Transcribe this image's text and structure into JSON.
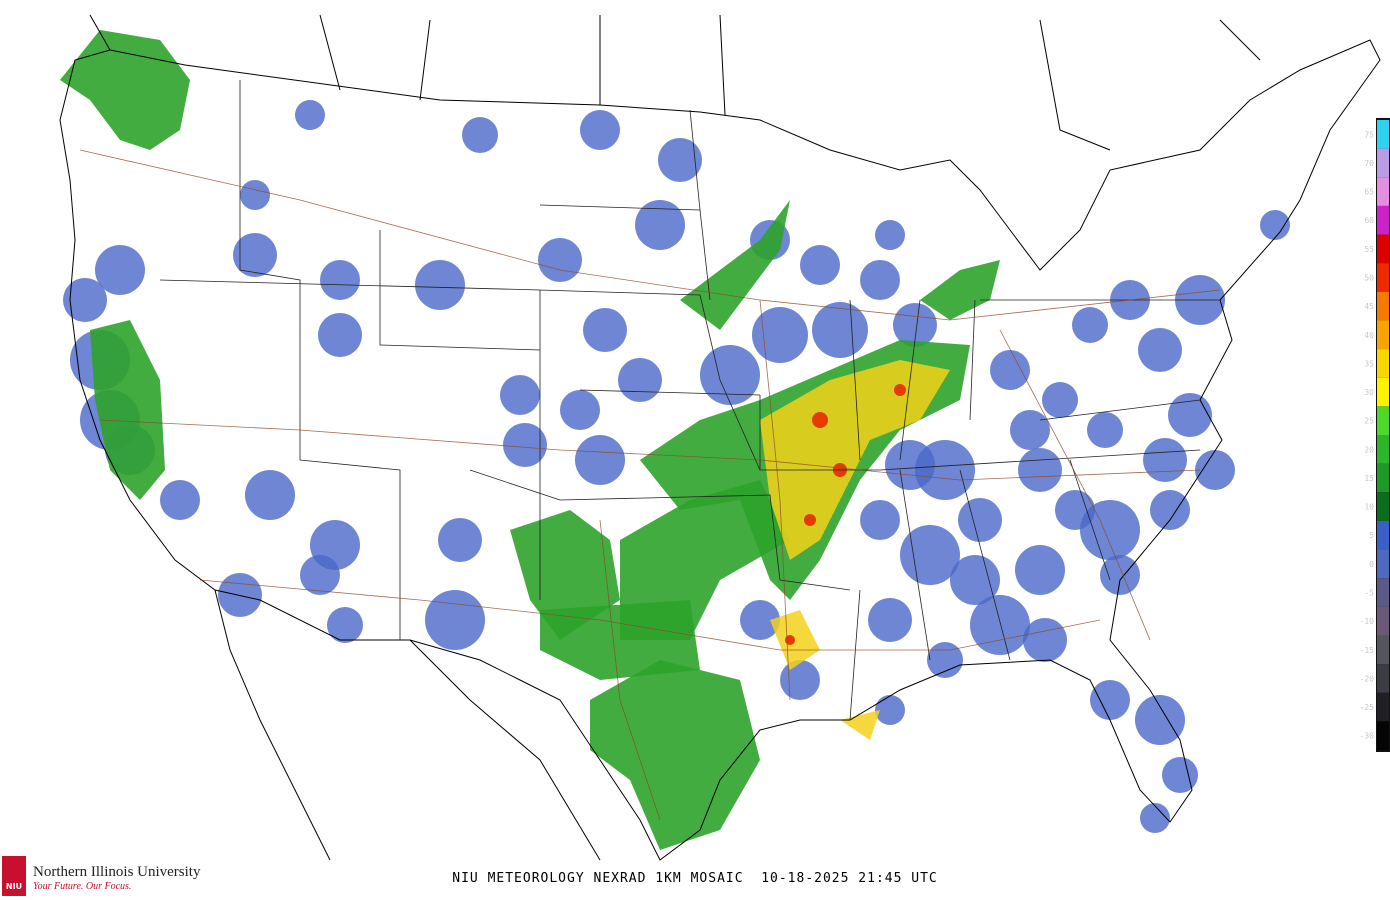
{
  "header": {
    "title": "NIU METEOROLOGY NEXRAD 1KM MOSAIC  10-18-2025 21:45 UTC"
  },
  "logo": {
    "badge": "NIU",
    "name": "Northern Illinois University",
    "tagline": "Your Future. Our Focus."
  },
  "legend": {
    "levels": [
      {
        "value": 75,
        "color": "#2fd2f0"
      },
      {
        "value": 70,
        "color": "#b99be8"
      },
      {
        "value": 65,
        "color": "#e38ee0"
      },
      {
        "value": 60,
        "color": "#cc22cc"
      },
      {
        "value": 55,
        "color": "#dd0000"
      },
      {
        "value": 50,
        "color": "#f02a00"
      },
      {
        "value": 45,
        "color": "#f57a00"
      },
      {
        "value": 40,
        "color": "#f8a400"
      },
      {
        "value": 35,
        "color": "#f6d800"
      },
      {
        "value": 30,
        "color": "#fff200"
      },
      {
        "value": 25,
        "color": "#4fd82c"
      },
      {
        "value": 20,
        "color": "#2eb62a"
      },
      {
        "value": 15,
        "color": "#1f9a29"
      },
      {
        "value": 10,
        "color": "#0a6e1c"
      },
      {
        "value": 5,
        "color": "#3a5fc8"
      },
      {
        "value": 0,
        "color": "#4d6ac0"
      },
      {
        "value": -5,
        "color": "#5a5a8a"
      },
      {
        "value": -10,
        "color": "#6a5a78"
      },
      {
        "value": -15,
        "color": "#555560"
      },
      {
        "value": -20,
        "color": "#3c3c44"
      },
      {
        "value": -25,
        "color": "#1f1f24"
      },
      {
        "value": -30,
        "color": "#050505"
      }
    ]
  }
}
